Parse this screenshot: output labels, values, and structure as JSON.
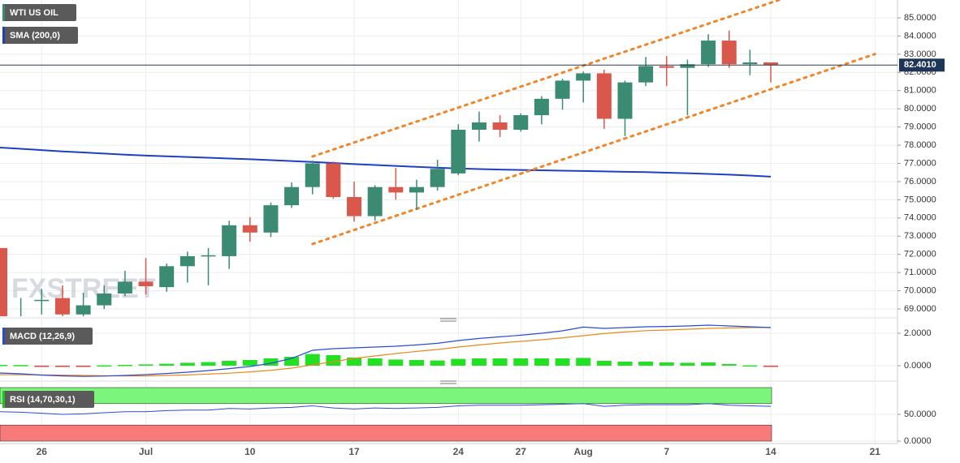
{
  "chart_data": [
    {
      "type": "candlestick",
      "title": "WTI US OIL",
      "categories": [
        null,
        null,
        "26",
        null,
        null,
        null,
        null,
        "Jul",
        null,
        null,
        null,
        null,
        "10",
        null,
        null,
        null,
        null,
        "17",
        null,
        null,
        null,
        null,
        "24",
        null,
        null,
        "27",
        null,
        null,
        "Aug",
        null,
        null,
        null,
        "7",
        null,
        null,
        null,
        null,
        "14",
        null,
        null,
        null,
        null,
        "21"
      ],
      "open": [
        72.35,
        68.5,
        69.45,
        69.6,
        68.7,
        69.2,
        69.85,
        70.5,
        70.2,
        71.35,
        71.9,
        71.9,
        73.6,
        73.2,
        74.7,
        75.7,
        77.0,
        75.15,
        74.1,
        75.7,
        75.4,
        75.7,
        76.45,
        78.85,
        79.25,
        78.85,
        79.65,
        80.55,
        81.55,
        81.95,
        79.45,
        81.45,
        82.35,
        82.25,
        82.45,
        83.75,
        82.45,
        82.55,
        null,
        null,
        null,
        null,
        null
      ],
      "high": [
        72.35,
        69.6,
        70.1,
        70.3,
        69.9,
        70.3,
        71.1,
        71.8,
        71.5,
        72.15,
        72.35,
        73.85,
        74.05,
        74.85,
        75.95,
        77.15,
        77.1,
        76.0,
        75.8,
        76.75,
        76.1,
        77.2,
        79.15,
        79.85,
        79.65,
        79.75,
        80.7,
        81.65,
        82.05,
        82.15,
        81.55,
        82.85,
        82.9,
        82.7,
        84.1,
        84.3,
        83.25,
        82.55,
        null,
        null,
        null,
        null,
        null
      ],
      "low": [
        68.6,
        68.3,
        68.7,
        68.5,
        68.5,
        69.0,
        69.7,
        69.8,
        69.95,
        70.45,
        70.3,
        71.2,
        72.7,
        72.95,
        74.55,
        75.3,
        75.05,
        73.8,
        73.85,
        75.0,
        74.45,
        75.5,
        76.35,
        78.2,
        78.45,
        78.75,
        79.15,
        79.95,
        80.35,
        78.9,
        78.5,
        81.25,
        81.25,
        79.65,
        82.3,
        82.25,
        81.85,
        81.45,
        null,
        null,
        null,
        null,
        null
      ],
      "close": [
        68.6,
        68.6,
        69.5,
        68.7,
        69.2,
        69.85,
        70.5,
        70.25,
        71.35,
        71.9,
        71.95,
        73.6,
        73.2,
        74.7,
        75.7,
        77.0,
        75.15,
        74.1,
        75.7,
        75.4,
        75.7,
        76.7,
        78.85,
        79.25,
        78.85,
        79.65,
        80.55,
        81.55,
        81.95,
        79.45,
        81.45,
        82.35,
        82.25,
        82.45,
        83.75,
        82.45,
        82.55,
        82.4,
        null,
        null,
        null,
        null,
        null
      ],
      "up_color": "#3b8a72",
      "down_color": "#d9574b",
      "ylim": [
        68.6,
        85.98
      ],
      "yticks": [
        {
          "value": 69,
          "label": "69.0000"
        },
        {
          "value": 70,
          "label": "70.0000"
        },
        {
          "value": 71,
          "label": "71.0000"
        },
        {
          "value": 72,
          "label": "72.0000"
        },
        {
          "value": 73,
          "label": "73.0000"
        },
        {
          "value": 74,
          "label": "74.0000"
        },
        {
          "value": 75,
          "label": "75.0000"
        },
        {
          "value": 76,
          "label": "76.0000"
        },
        {
          "value": 77,
          "label": "77.0000"
        },
        {
          "value": 78,
          "label": "78.0000"
        },
        {
          "value": 79,
          "label": "79.0000"
        },
        {
          "value": 80,
          "label": "80.0000"
        },
        {
          "value": 81,
          "label": "81.0000"
        },
        {
          "value": 82,
          "label": "82.0000"
        },
        {
          "value": 83,
          "label": "83.0000"
        },
        {
          "value": 84,
          "label": "84.0000"
        },
        {
          "value": 85,
          "label": "85.0000"
        }
      ],
      "grid": true,
      "last_price": {
        "value": 82.401,
        "label": "82.4010"
      },
      "sma": {
        "name": "SMA (200,0)",
        "color": "#1f3fbf",
        "values": [
          77.87,
          77.8,
          77.73,
          77.66,
          77.6,
          77.54,
          77.48,
          77.43,
          77.39,
          77.35,
          77.31,
          77.27,
          77.23,
          77.18,
          77.13,
          77.08,
          77.02,
          76.96,
          76.91,
          76.86,
          76.81,
          76.76,
          76.72,
          76.69,
          76.66,
          76.64,
          76.62,
          76.6,
          76.58,
          76.56,
          76.54,
          76.52,
          76.49,
          76.46,
          76.42,
          76.38,
          76.33,
          76.27,
          null,
          null,
          null,
          null,
          null
        ]
      },
      "channel": {
        "color": "#f0862a",
        "upper": [
          77.38,
          87.75
        ],
        "lower": [
          72.57,
          83.01
        ]
      },
      "watermark": "FXSTREET"
    },
    {
      "type": "macd",
      "title": "MACD (12,26,9)",
      "macd": {
        "color": "#2a4bd7",
        "values": [
          -0.45,
          -0.5,
          -0.58,
          -0.63,
          -0.66,
          -0.64,
          -0.6,
          -0.55,
          -0.48,
          -0.4,
          -0.3,
          -0.18,
          -0.05,
          0.15,
          0.45,
          0.95,
          1.05,
          1.1,
          1.15,
          1.2,
          1.28,
          1.38,
          1.55,
          1.68,
          1.78,
          1.88,
          2.0,
          2.15,
          2.38,
          2.3,
          2.35,
          2.4,
          2.42,
          2.45,
          2.5,
          2.45,
          2.4,
          2.35
        ]
      },
      "signal": {
        "color": "#e8891c",
        "values": [
          -0.55,
          -0.56,
          -0.57,
          -0.58,
          -0.6,
          -0.62,
          -0.63,
          -0.63,
          -0.6,
          -0.57,
          -0.52,
          -0.46,
          -0.38,
          -0.28,
          -0.15,
          0.05,
          0.25,
          0.45,
          0.6,
          0.75,
          0.88,
          1.0,
          1.15,
          1.28,
          1.4,
          1.5,
          1.6,
          1.72,
          1.85,
          1.98,
          2.08,
          2.16,
          2.2,
          2.25,
          2.3,
          2.33,
          2.35,
          2.36
        ]
      },
      "histogram": {
        "up_color": "#22e022",
        "down_color": "#f04040",
        "values": [
          0.05,
          0.04,
          -0.05,
          -0.06,
          -0.05,
          0.02,
          0.05,
          0.08,
          0.12,
          0.18,
          0.22,
          0.3,
          0.35,
          0.45,
          0.55,
          0.72,
          0.65,
          0.5,
          0.45,
          0.38,
          0.35,
          0.32,
          0.42,
          0.45,
          0.45,
          0.45,
          0.45,
          0.45,
          0.48,
          0.3,
          0.25,
          0.25,
          0.2,
          0.18,
          0.2,
          0.1,
          0.02,
          -0.03
        ]
      },
      "ylim": [
        -0.7,
        2.65
      ],
      "yticks": [
        {
          "value": 0,
          "label": "0.0000"
        },
        {
          "value": 2,
          "label": "2.0000"
        }
      ]
    },
    {
      "type": "rsi",
      "title": "RSI (14,70,30,1)",
      "color": "#2a4bd7",
      "values": [
        55,
        54,
        52,
        50,
        51,
        53,
        55,
        55,
        57,
        58,
        58,
        61,
        60,
        62,
        63,
        66,
        62,
        60,
        62,
        61,
        62,
        63,
        66,
        67,
        67,
        67,
        68,
        69,
        70,
        65,
        67,
        68,
        68,
        68,
        70,
        67,
        66,
        65
      ],
      "overbought": 70,
      "oversold": 30,
      "overbought_color": "#7cf57c",
      "oversold_color": "#f77b7b",
      "ylim": [
        0,
        100
      ],
      "yticks": [
        {
          "value": 0,
          "label": "0.0000"
        },
        {
          "value": 50,
          "label": "50.0000"
        }
      ]
    }
  ]
}
